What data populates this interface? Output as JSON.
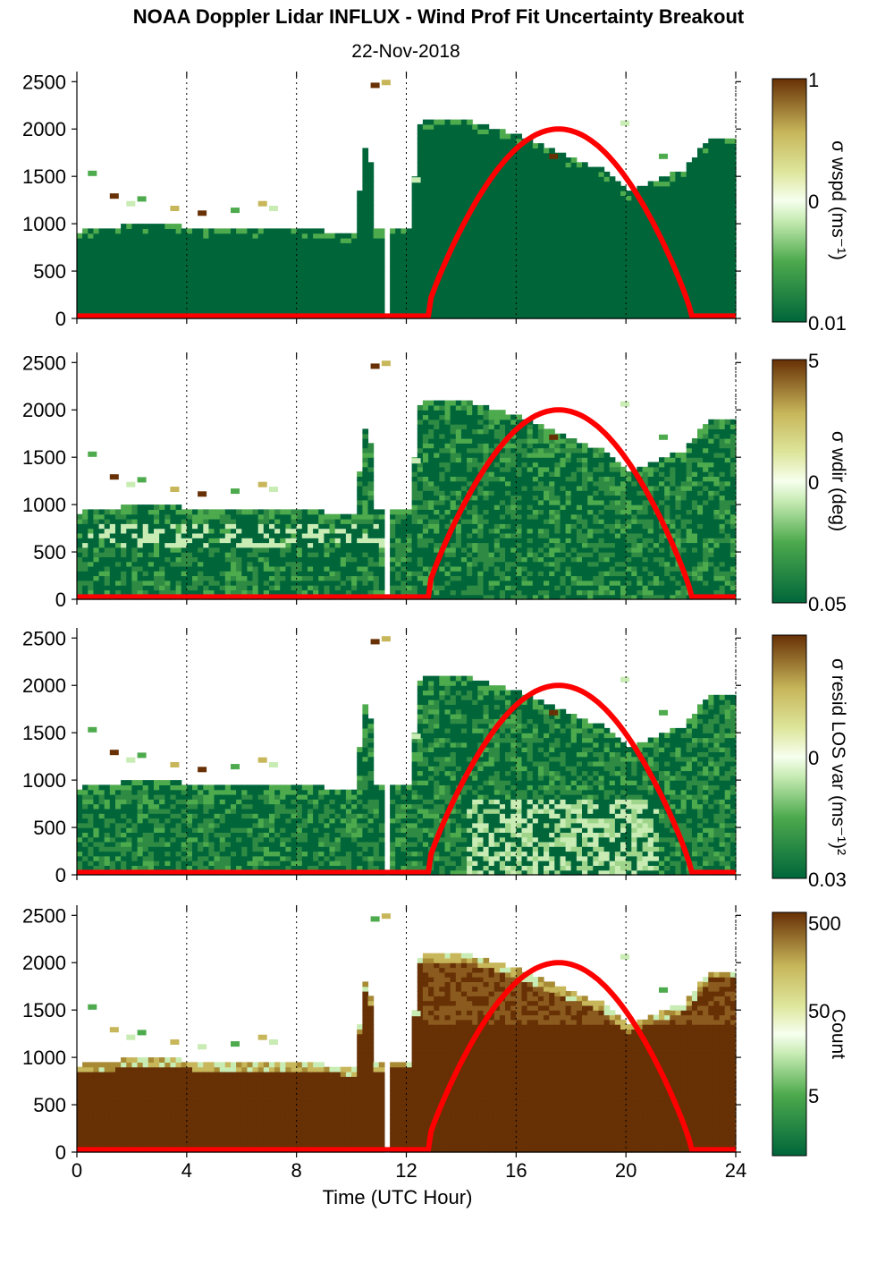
{
  "title": "NOAA Doppler Lidar INFLUX - Wind Prof Fit Uncertainty Breakout",
  "subtitle": "22-Nov-2018",
  "colors": {
    "dark_green": "#00663a",
    "mid_green": "#4daa4d",
    "light_green": "#c8ecb4",
    "white_center": "#f6ffee",
    "tan": "#c7b65a",
    "dark_brown": "#673005",
    "sun_curve": "#ff0000"
  },
  "chart_data": [
    {
      "type": "heatmap",
      "panel": "wspd-uncertainty",
      "xlabel": "",
      "ylabel": "",
      "xlim": [
        0,
        24
      ],
      "ylim": [
        0,
        2550
      ],
      "x_ticks": [
        0,
        4,
        8,
        12,
        16,
        20,
        24
      ],
      "y_ticks": [
        "0",
        "500",
        "1000",
        "1500",
        "2000",
        "2500"
      ],
      "colorbar": {
        "label": "σ wspd (ms⁻¹)",
        "ticks": [
          "1",
          "0",
          "0.01"
        ],
        "scale": "log"
      },
      "data_top_height_m": {
        "x": [
          0,
          1,
          2,
          3,
          4,
          5,
          6,
          7,
          8,
          9,
          10,
          10.5,
          10.8,
          11.3,
          12,
          12.4,
          14,
          16,
          17.5,
          19,
          20,
          21,
          22,
          23,
          23.8
        ],
        "y": [
          900,
          920,
          980,
          980,
          940,
          930,
          930,
          920,
          920,
          900,
          880,
          1980,
          930,
          950,
          950,
          2050,
          2080,
          1900,
          1720,
          1550,
          1320,
          1450,
          1550,
          1900,
          1900
        ]
      },
      "sun_elevation_curve": {
        "x": [
          0,
          12.8,
          14,
          15,
          16,
          17,
          17.5,
          18,
          19,
          20,
          21,
          22,
          22.5,
          24
        ],
        "y": [
          25,
          25,
          900,
          1450,
          1800,
          1980,
          2000,
          1980,
          1780,
          1420,
          880,
          180,
          25,
          25
        ]
      }
    },
    {
      "type": "heatmap",
      "panel": "wdir-uncertainty",
      "xlabel": "",
      "ylabel": "",
      "xlim": [
        0,
        24
      ],
      "ylim": [
        0,
        2550
      ],
      "x_ticks": [
        0,
        4,
        8,
        12,
        16,
        20,
        24
      ],
      "y_ticks": [
        "0",
        "500",
        "1000",
        "1500",
        "2000",
        "2500"
      ],
      "colorbar": {
        "label": "σ wdir (deg)",
        "ticks": [
          "5",
          "0",
          "0.05"
        ],
        "scale": "log"
      },
      "sun_elevation_curve": {
        "x": [
          0,
          12.8,
          14,
          15,
          16,
          17,
          17.5,
          18,
          19,
          20,
          21,
          22,
          22.5,
          24
        ],
        "y": [
          25,
          25,
          900,
          1450,
          1800,
          1980,
          2000,
          1980,
          1780,
          1420,
          880,
          180,
          25,
          25
        ]
      }
    },
    {
      "type": "heatmap",
      "panel": "resid-los-variance",
      "xlabel": "",
      "ylabel": "",
      "xlim": [
        0,
        24
      ],
      "ylim": [
        0,
        2550
      ],
      "x_ticks": [
        0,
        4,
        8,
        12,
        16,
        20,
        24
      ],
      "y_ticks": [
        "0",
        "500",
        "1000",
        "1500",
        "2000",
        "2500"
      ],
      "colorbar": {
        "label": "σ resid LOS var (ms⁻¹)²",
        "ticks": [
          "0",
          "0.03"
        ],
        "scale": "log"
      },
      "sun_elevation_curve": {
        "x": [
          0,
          12.8,
          14,
          15,
          16,
          17,
          17.5,
          18,
          19,
          20,
          21,
          22,
          22.5,
          24
        ],
        "y": [
          25,
          25,
          900,
          1450,
          1800,
          1980,
          2000,
          1980,
          1780,
          1420,
          880,
          180,
          25,
          25
        ]
      }
    },
    {
      "type": "heatmap",
      "panel": "count",
      "xlabel": "Time (UTC Hour)",
      "ylabel": "",
      "xlim": [
        0,
        24
      ],
      "ylim": [
        0,
        2550
      ],
      "x_ticks": [
        0,
        4,
        8,
        12,
        16,
        20,
        24
      ],
      "y_ticks": [
        "0",
        "500",
        "1000",
        "1500",
        "2000",
        "2500"
      ],
      "colorbar": {
        "label": "Count",
        "ticks": [
          "500",
          "50",
          "5"
        ],
        "scale": "log"
      },
      "sun_elevation_curve": {
        "x": [
          0,
          12.8,
          14,
          15,
          16,
          17,
          17.5,
          18,
          19,
          20,
          21,
          22,
          22.5,
          24
        ],
        "y": [
          25,
          25,
          900,
          1450,
          1800,
          1980,
          2000,
          1980,
          1780,
          1420,
          880,
          180,
          25,
          25
        ]
      }
    }
  ]
}
